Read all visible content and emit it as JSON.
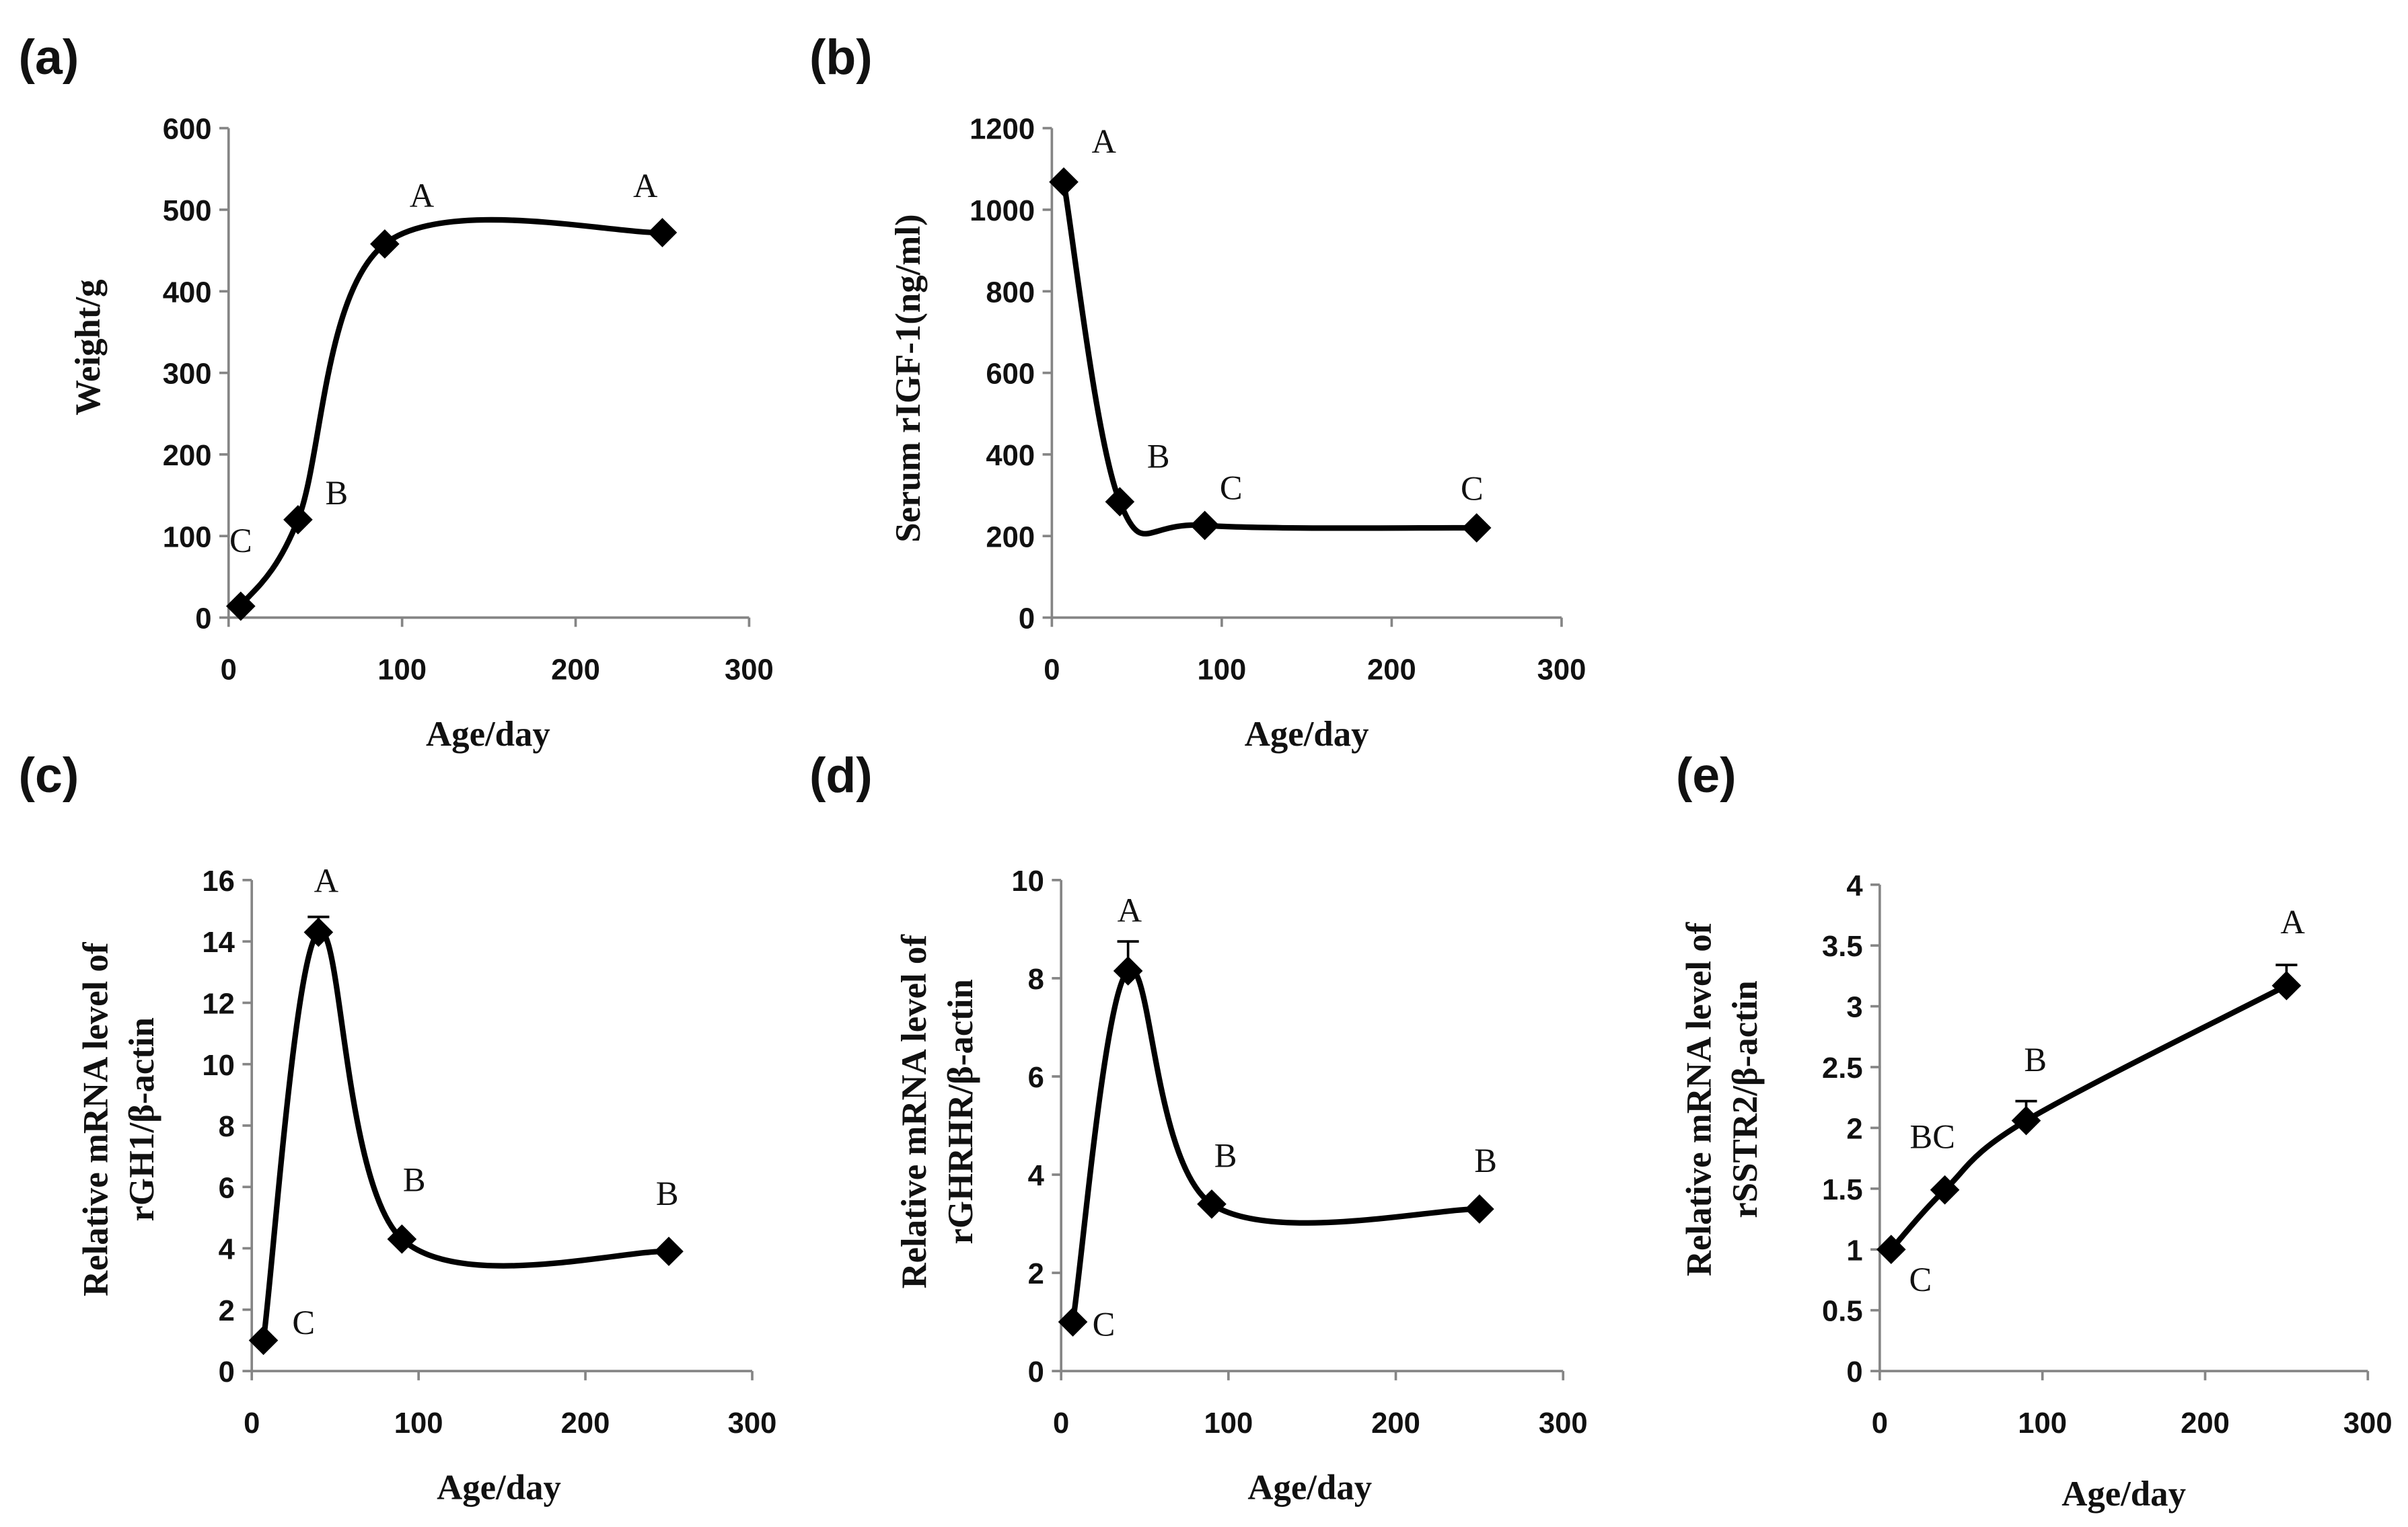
{
  "chart_data": [
    {
      "panel": "(a)",
      "type": "line",
      "smooth": true,
      "marker": "diamond",
      "color": "#000000",
      "x": [
        7,
        40,
        90,
        250
      ],
      "y": [
        14,
        120,
        458,
        472
      ],
      "error": [
        null,
        null,
        null,
        null
      ],
      "point_labels": [
        "C",
        "B",
        "A",
        "A"
      ],
      "xlabel": "Age/day",
      "ylabel": "Weight/g",
      "xlim": [
        0,
        300
      ],
      "ylim": [
        0,
        600
      ],
      "xticks": [
        0,
        100,
        200,
        300
      ],
      "yticks": [
        0,
        100,
        200,
        300,
        400,
        500,
        600
      ]
    },
    {
      "panel": "(b)",
      "type": "line",
      "smooth": true,
      "marker": "diamond",
      "color": "#000000",
      "x": [
        7,
        40,
        90,
        250
      ],
      "y": [
        1068,
        284,
        226,
        220
      ],
      "error": [
        null,
        null,
        null,
        null
      ],
      "point_labels": [
        "A",
        "B",
        "C",
        "C"
      ],
      "xlabel": "Age/day",
      "ylabel": "Serum rIGF-1(ng/ml)",
      "xlim": [
        0,
        300
      ],
      "ylim": [
        0,
        1200
      ],
      "xticks": [
        0,
        100,
        200,
        300
      ],
      "yticks": [
        0,
        200,
        400,
        600,
        800,
        1000,
        1200
      ]
    },
    {
      "panel": "(c)",
      "type": "line",
      "smooth": true,
      "marker": "diamond",
      "color": "#000000",
      "x": [
        7,
        40,
        90,
        250
      ],
      "y": [
        1.0,
        14.3,
        4.3,
        3.9
      ],
      "error": [
        null,
        0.5,
        null,
        null
      ],
      "point_labels": [
        "C",
        "A",
        "B",
        "B"
      ],
      "xlabel": "Age/day",
      "ylabel": [
        "Relative mRNA level of",
        "rGH1/β-actin"
      ],
      "xlim": [
        0,
        300
      ],
      "ylim": [
        0,
        16
      ],
      "xticks": [
        0,
        100,
        200,
        300
      ],
      "yticks": [
        0,
        2,
        4,
        6,
        8,
        10,
        12,
        14,
        16
      ]
    },
    {
      "panel": "(d)",
      "type": "line",
      "smooth": true,
      "marker": "diamond",
      "color": "#000000",
      "x": [
        7,
        40,
        90,
        250
      ],
      "y": [
        1.0,
        8.15,
        3.4,
        3.3
      ],
      "error": [
        null,
        0.6,
        null,
        null
      ],
      "point_labels": [
        "C",
        "A",
        "B",
        "B"
      ],
      "xlabel": "Age/day",
      "ylabel": [
        "Relative mRNA level of",
        "rGHRHR/β-actin"
      ],
      "xlim": [
        0,
        300
      ],
      "ylim": [
        0,
        10
      ],
      "xticks": [
        0,
        100,
        200,
        300
      ],
      "yticks": [
        0,
        2,
        4,
        6,
        8,
        10
      ]
    },
    {
      "panel": "(e)",
      "type": "line",
      "smooth": true,
      "marker": "diamond",
      "color": "#000000",
      "x": [
        7,
        40,
        90,
        250
      ],
      "y": [
        1.0,
        1.49,
        2.06,
        3.17
      ],
      "error": [
        null,
        null,
        0.16,
        0.17
      ],
      "point_labels": [
        "C",
        "BC",
        "B",
        "A"
      ],
      "xlabel": "Age/day",
      "ylabel": [
        "Relative mRNA level of",
        "rSSTR2/β-actin"
      ],
      "xlim": [
        0,
        300
      ],
      "ylim": [
        0,
        4
      ],
      "xticks": [
        0,
        100,
        200,
        300
      ],
      "yticks": [
        0,
        0.5,
        1,
        1.5,
        2,
        2.5,
        3,
        3.5,
        4
      ]
    }
  ]
}
